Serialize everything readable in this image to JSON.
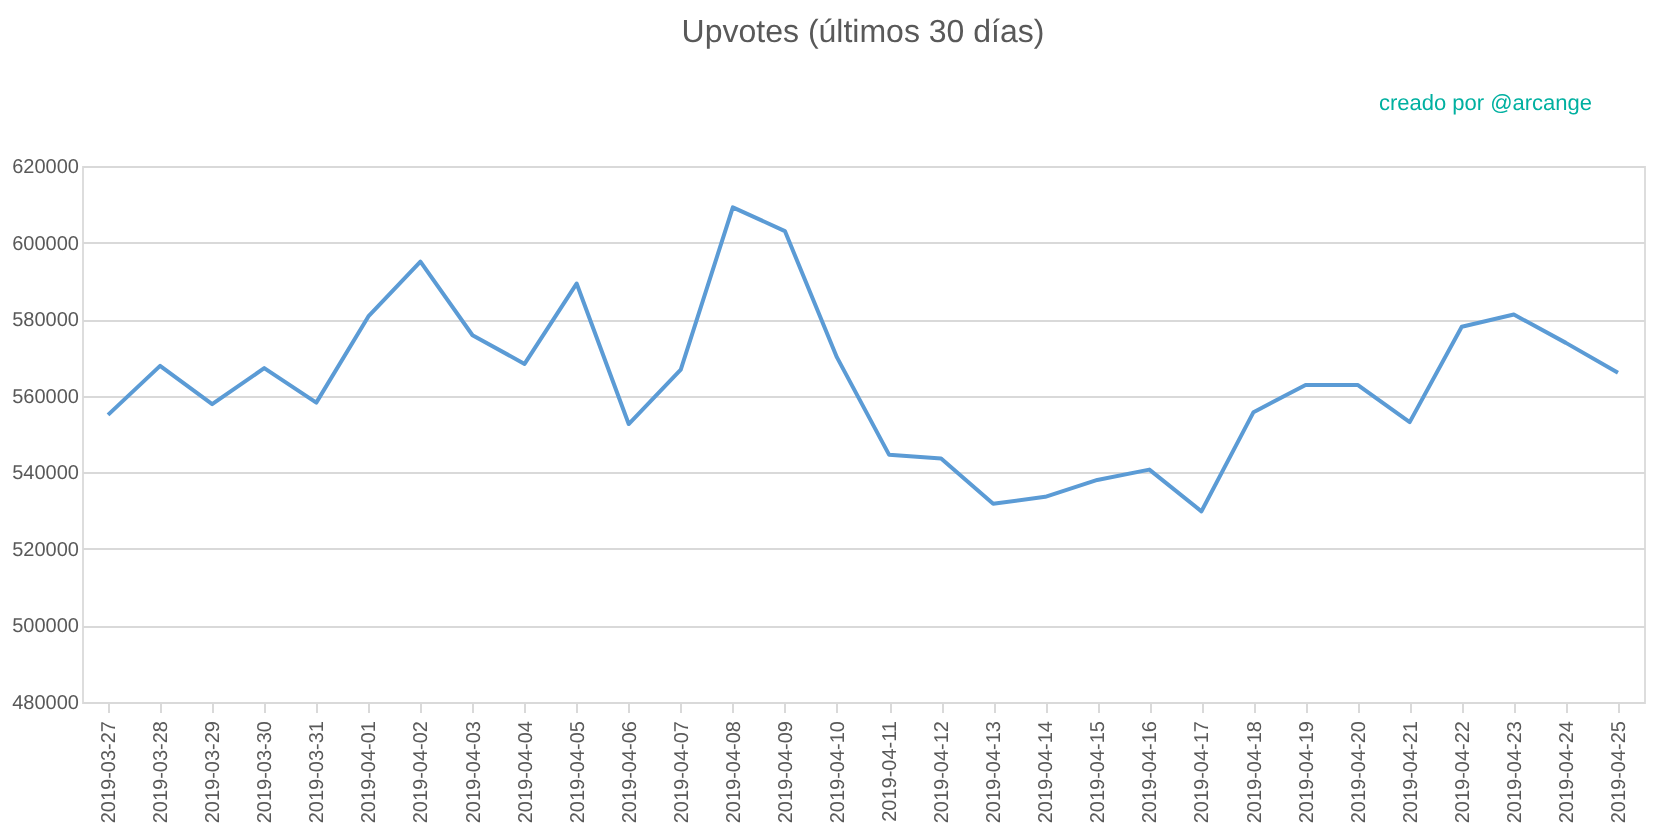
{
  "chart_data": {
    "type": "line",
    "title": "Upvotes (últimos 30 días)",
    "annotations": [
      "creado por @arcange"
    ],
    "categories": [
      "2019-03-27",
      "2019-03-28",
      "2019-03-29",
      "2019-03-30",
      "2019-03-31",
      "2019-04-01",
      "2019-04-02",
      "2019-04-03",
      "2019-04-04",
      "2019-04-05",
      "2019-04-06",
      "2019-04-07",
      "2019-04-08",
      "2019-04-09",
      "2019-04-10",
      "2019-04-11",
      "2019-04-12",
      "2019-04-13",
      "2019-04-14",
      "2019-04-15",
      "2019-04-16",
      "2019-04-17",
      "2019-04-18",
      "2019-04-19",
      "2019-04-20",
      "2019-04-21",
      "2019-04-22",
      "2019-04-23",
      "2019-04-24",
      "2019-04-25"
    ],
    "series": [
      {
        "color": "#5b9bd5",
        "values": [
          555000,
          567800,
          557800,
          567200,
          558200,
          580700,
          595000,
          575800,
          568300,
          589300,
          552600,
          566800,
          609200,
          603000,
          570000,
          544600,
          543600,
          531800,
          533600,
          538000,
          540700,
          529800,
          555700,
          562800,
          562800,
          553100,
          578000,
          581200,
          573800,
          566000
        ]
      }
    ],
    "ylim": [
      480000,
      620000
    ],
    "yticks": [
      480000,
      500000,
      520000,
      540000,
      560000,
      580000,
      600000,
      620000
    ],
    "grid": "y",
    "marker": "none",
    "line_style": "solid"
  }
}
